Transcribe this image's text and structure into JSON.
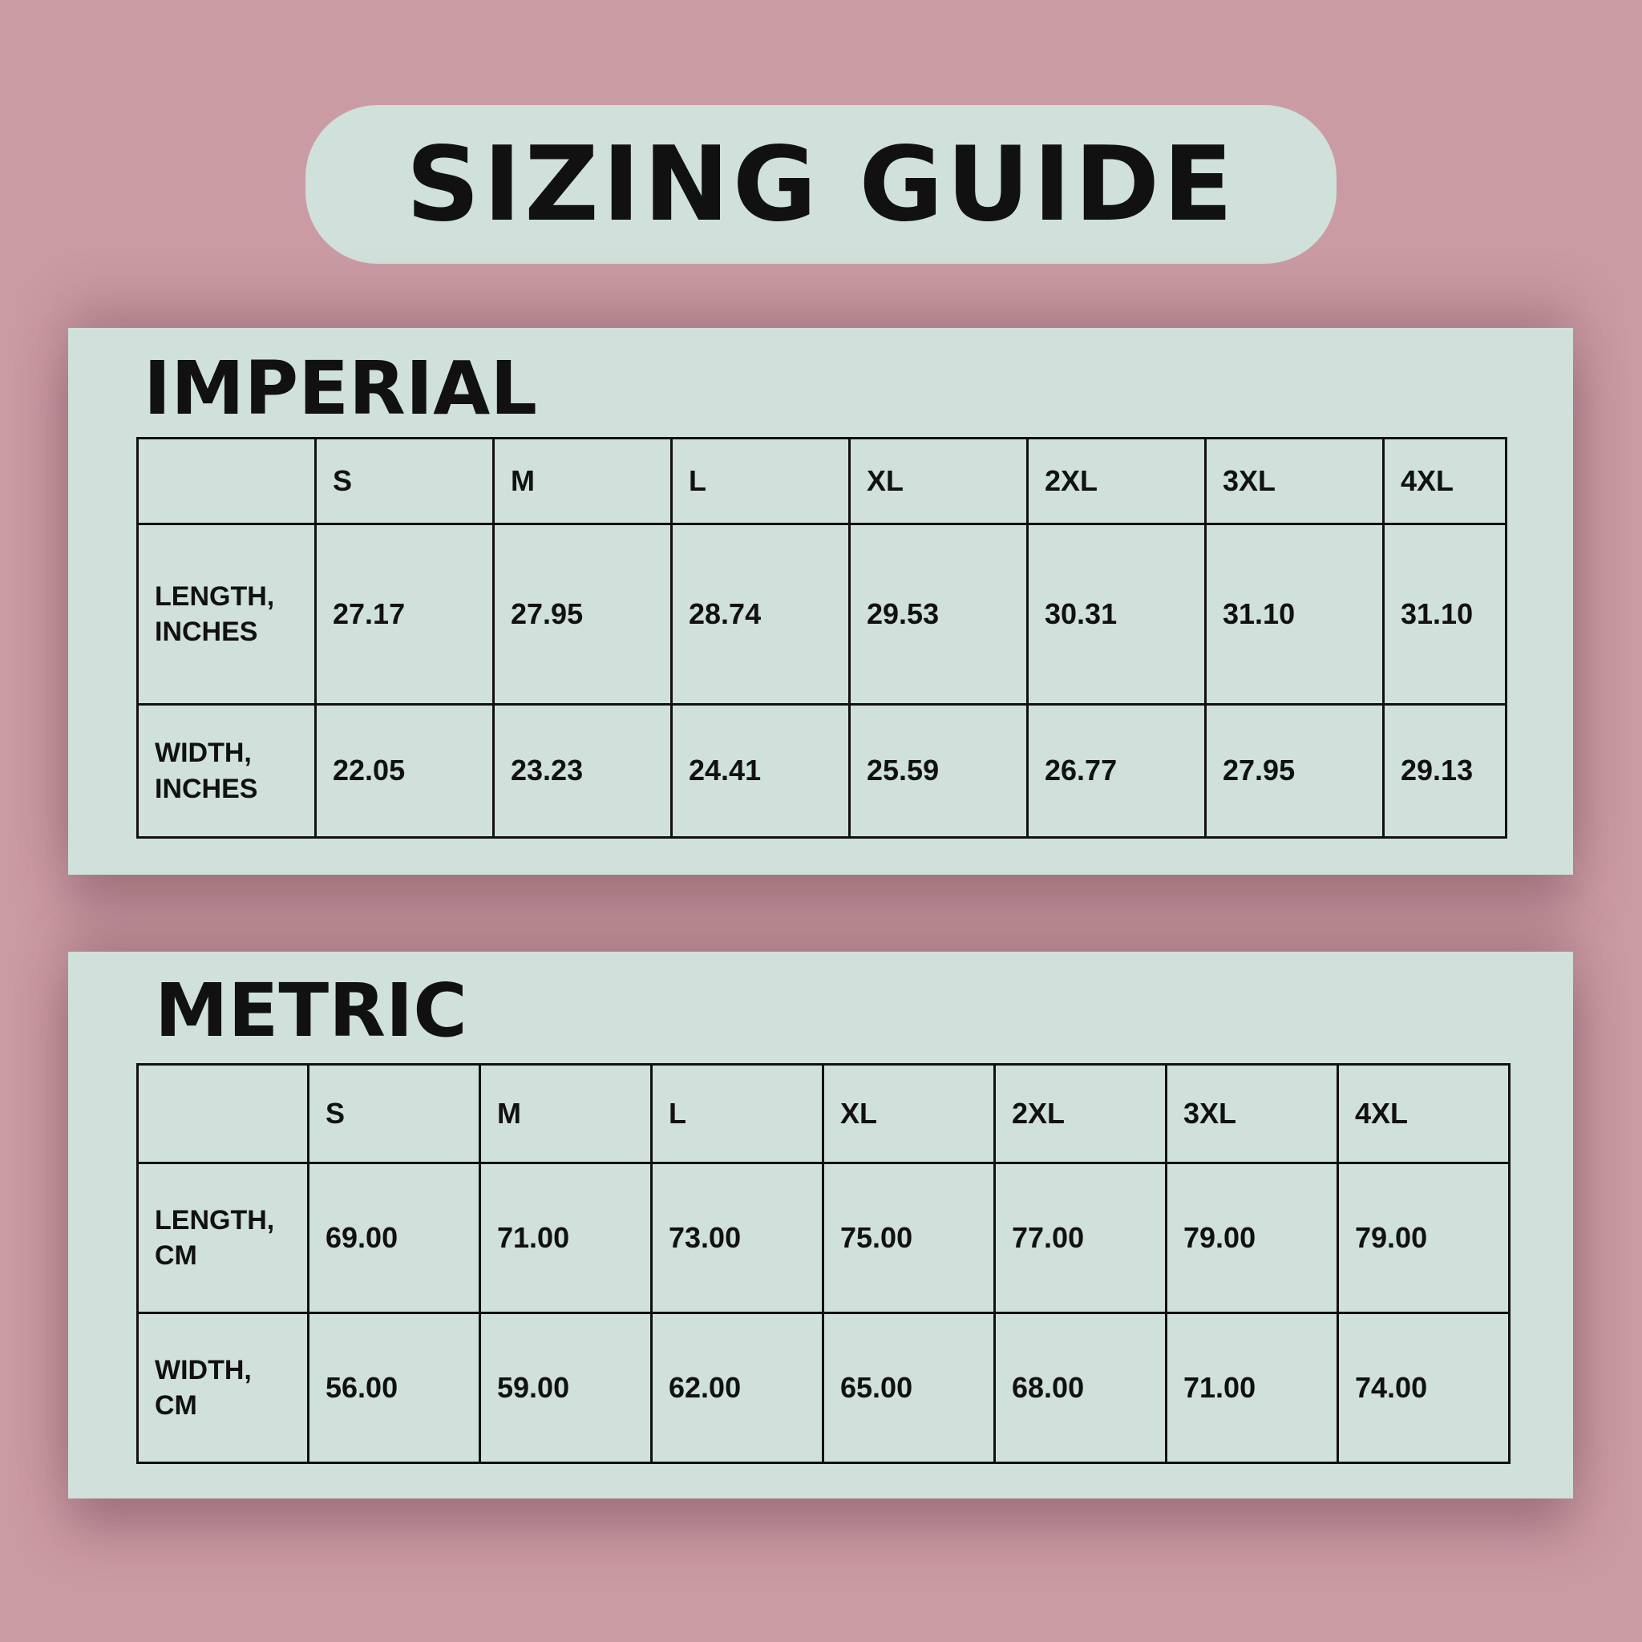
{
  "header": {
    "title": "SIZING GUIDE"
  },
  "tables": [
    {
      "title": "IMPERIAL",
      "columns": [
        "S",
        "M",
        "L",
        "XL",
        "2XL",
        "3XL",
        "4XL"
      ],
      "rows": [
        {
          "label": "LENGTH, INCHES",
          "values": [
            "27.17",
            "27.95",
            "28.74",
            "29.53",
            "30.31",
            "31.10",
            "31.10"
          ]
        },
        {
          "label": "WIDTH, INCHES",
          "values": [
            "22.05",
            "23.23",
            "24.41",
            "25.59",
            "26.77",
            "27.95",
            "29.13"
          ]
        }
      ]
    },
    {
      "title": "METRIC",
      "columns": [
        "S",
        "M",
        "L",
        "XL",
        "2XL",
        "3XL",
        "4XL"
      ],
      "rows": [
        {
          "label": "LENGTH, CM",
          "values": [
            "69.00",
            "71.00",
            "73.00",
            "75.00",
            "77.00",
            "79.00",
            "79.00"
          ]
        },
        {
          "label": "WIDTH, CM",
          "values": [
            "56.00",
            "59.00",
            "62.00",
            "65.00",
            "68.00",
            "71.00",
            "74.00"
          ]
        }
      ]
    }
  ]
}
